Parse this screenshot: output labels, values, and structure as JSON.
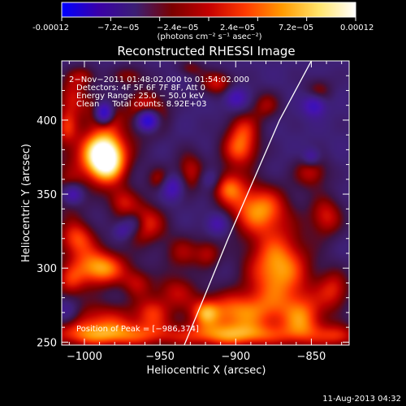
{
  "colorbar": {
    "min_label": "-0.00012",
    "max_label": "0.00012",
    "tick_labels": [
      "−7.2e−05",
      "−2.4e−05",
      "2.4e−05",
      "7.2e−05"
    ],
    "units": "(photons cm⁻² s⁻¹ asec⁻²)",
    "colors": [
      "#0000ff",
      "#3a00a8",
      "#3b1f74",
      "#7a0000",
      "#c40000",
      "#ff3a00",
      "#ff9a00",
      "#ffe46a",
      "#ffffff"
    ]
  },
  "footer": {
    "timestamp": "11-Aug-2013 04:32"
  },
  "chart_data": {
    "type": "heatmap",
    "title": "Reconstructed RHESSI Image",
    "xlabel": "Heliocentric X (arcsec)",
    "ylabel": "Heliocentric Y (arcsec)",
    "xlim": [
      -1015,
      -825
    ],
    "ylim": [
      248,
      440
    ],
    "x_ticks": [
      -1000,
      -950,
      -900,
      -850
    ],
    "x_tick_labels": [
      "−1000",
      "−950",
      "−900",
      "−850"
    ],
    "y_ticks": [
      250,
      300,
      350,
      400
    ],
    "y_tick_labels": [
      "250",
      "300",
      "350",
      "400"
    ],
    "annotation_lines": [
      "2−Nov−2011 01:48:02.000 to 01:54:02.000",
      "Detectors: 4F 5F 6F 7F 8F, Att 0",
      "Energy Range: 25.0 − 50.0 keV",
      "Clean     Total counts: 8.92E+03"
    ],
    "peak_label": "Position of Peak = [−986,374]",
    "peak_position": [
      -986,
      374
    ],
    "limb_curve": [
      [
        -934,
        248
      ],
      [
        -921,
        280
      ],
      [
        -905,
        320
      ],
      [
        -888,
        360
      ],
      [
        -871,
        400
      ],
      [
        -850,
        440
      ]
    ],
    "blobs": [
      {
        "x": -986,
        "y": 374,
        "sx": 9,
        "sy": 12,
        "v": 1.25
      },
      {
        "x": -987,
        "y": 405,
        "sx": 8,
        "sy": 8,
        "v": 0.55
      },
      {
        "x": -993,
        "y": 378,
        "sx": 18,
        "sy": 14,
        "v": 0.55
      },
      {
        "x": -1008,
        "y": 415,
        "sx": 7,
        "sy": 10,
        "v": 0.6
      },
      {
        "x": -990,
        "y": 300,
        "sx": 13,
        "sy": 9,
        "v": 1.0
      },
      {
        "x": -1005,
        "y": 320,
        "sx": 9,
        "sy": 9,
        "v": 0.75
      },
      {
        "x": -960,
        "y": 330,
        "sx": 10,
        "sy": 10,
        "v": 0.7
      },
      {
        "x": -958,
        "y": 405,
        "sx": 9,
        "sy": 10,
        "v": 0.8
      },
      {
        "x": -930,
        "y": 365,
        "sx": 7,
        "sy": 10,
        "v": 0.55
      },
      {
        "x": -905,
        "y": 355,
        "sx": 8,
        "sy": 8,
        "v": 0.7
      },
      {
        "x": -897,
        "y": 380,
        "sx": 9,
        "sy": 9,
        "v": 0.75
      },
      {
        "x": -912,
        "y": 425,
        "sx": 8,
        "sy": 6,
        "v": 0.6
      },
      {
        "x": -885,
        "y": 340,
        "sx": 14,
        "sy": 12,
        "v": 0.9
      },
      {
        "x": -872,
        "y": 300,
        "sx": 15,
        "sy": 18,
        "v": 1.0
      },
      {
        "x": -900,
        "y": 270,
        "sx": 22,
        "sy": 10,
        "v": 0.85
      },
      {
        "x": -855,
        "y": 265,
        "sx": 10,
        "sy": 12,
        "v": 0.7
      },
      {
        "x": -835,
        "y": 285,
        "sx": 8,
        "sy": 10,
        "v": 0.6
      },
      {
        "x": -840,
        "y": 335,
        "sx": 8,
        "sy": 10,
        "v": 0.6
      },
      {
        "x": -990,
        "y": 265,
        "sx": 22,
        "sy": 9,
        "v": 0.6
      },
      {
        "x": -955,
        "y": 270,
        "sx": 8,
        "sy": 8,
        "v": 0.5
      },
      {
        "x": -1010,
        "y": 350,
        "sx": 7,
        "sy": 10,
        "v": 0.5
      },
      {
        "x": -975,
        "y": 345,
        "sx": 7,
        "sy": 7,
        "v": 0.5
      },
      {
        "x": -895,
        "y": 395,
        "sx": 8,
        "sy": 8,
        "v": 0.5
      },
      {
        "x": -880,
        "y": 410,
        "sx": 7,
        "sy": 7,
        "v": 0.45
      },
      {
        "x": -935,
        "y": 310,
        "sx": 9,
        "sy": 9,
        "v": 0.45
      },
      {
        "x": -940,
        "y": 285,
        "sx": 10,
        "sy": 8,
        "v": 0.45
      },
      {
        "x": -985,
        "y": 254,
        "sx": 30,
        "sy": 6,
        "v": 0.7
      },
      {
        "x": -900,
        "y": 254,
        "sx": 30,
        "sy": 6,
        "v": 0.75
      },
      {
        "x": -832,
        "y": 254,
        "sx": 10,
        "sy": 6,
        "v": 0.6
      },
      {
        "x": -1010,
        "y": 290,
        "sx": 7,
        "sy": 8,
        "v": 0.5
      },
      {
        "x": -1012,
        "y": 395,
        "sx": 5,
        "sy": 8,
        "v": 0.45
      },
      {
        "x": -850,
        "y": 365,
        "sx": 8,
        "sy": 8,
        "v": 0.55
      },
      {
        "x": -845,
        "y": 420,
        "sx": 6,
        "sy": 6,
        "v": 0.4
      },
      {
        "x": -950,
        "y": 360,
        "sx": 6,
        "sy": 6,
        "v": 0.45
      },
      {
        "x": -965,
        "y": 290,
        "sx": 7,
        "sy": 7,
        "v": 0.45
      },
      {
        "x": -918,
        "y": 310,
        "sx": 6,
        "sy": 7,
        "v": 0.45
      },
      {
        "x": -920,
        "y": 270,
        "sx": 6,
        "sy": 6,
        "v": 0.45
      },
      {
        "x": -1000,
        "y": 430,
        "sx": 7,
        "sy": 5,
        "v": 0.4
      },
      {
        "x": -970,
        "y": 430,
        "sx": 8,
        "sy": 5,
        "v": 0.4
      },
      {
        "x": -930,
        "y": 435,
        "sx": 6,
        "sy": 4,
        "v": 0.35
      },
      {
        "x": -987,
        "y": 405,
        "sx": 4,
        "sy": 5,
        "v": -1.4
      },
      {
        "x": -958,
        "y": 400,
        "sx": 5,
        "sy": 5,
        "v": -1.6
      },
      {
        "x": -1008,
        "y": 350,
        "sx": 5,
        "sy": 5,
        "v": -0.9
      },
      {
        "x": -942,
        "y": 355,
        "sx": 5,
        "sy": 6,
        "v": -0.7
      },
      {
        "x": -900,
        "y": 415,
        "sx": 5,
        "sy": 5,
        "v": -0.6
      },
      {
        "x": -848,
        "y": 410,
        "sx": 5,
        "sy": 5,
        "v": -0.7
      },
      {
        "x": -850,
        "y": 375,
        "sx": 4,
        "sy": 4,
        "v": -0.5
      },
      {
        "x": -912,
        "y": 330,
        "sx": 5,
        "sy": 5,
        "v": -0.5
      },
      {
        "x": -968,
        "y": 330,
        "sx": 5,
        "sy": 5,
        "v": -0.45
      },
      {
        "x": -917,
        "y": 360,
        "sx": 5,
        "sy": 5,
        "v": -0.4
      },
      {
        "x": -1012,
        "y": 270,
        "sx": 6,
        "sy": 6,
        "v": -0.5
      },
      {
        "x": -975,
        "y": 325,
        "sx": 4,
        "sy": 4,
        "v": -0.4
      }
    ]
  }
}
